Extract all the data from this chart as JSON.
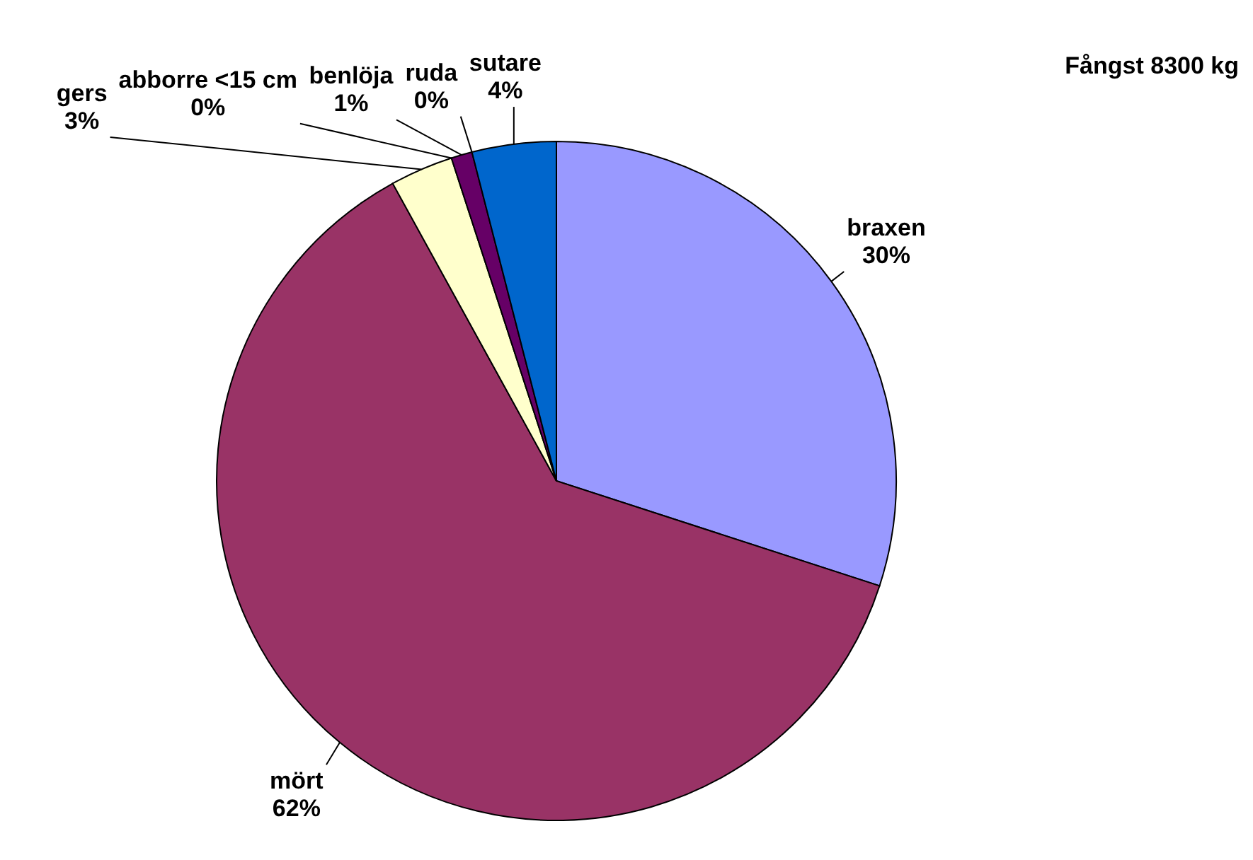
{
  "chart_data": {
    "type": "pie",
    "title": "Fångst 8300 kg",
    "categories": [
      "braxen",
      "mört",
      "gers",
      "abborre <15 cm",
      "benlöja",
      "ruda",
      "sutare"
    ],
    "values": [
      30,
      62,
      3,
      0,
      1,
      0,
      4
    ],
    "value_labels": [
      "30%",
      "62%",
      "3%",
      "0%",
      "1%",
      "0%",
      "4%"
    ],
    "colors": [
      "#9999ff",
      "#993366",
      "#ffffcc",
      "#ccffff",
      "#660066",
      "#ff8080",
      "#0066cc"
    ],
    "legend": false
  }
}
